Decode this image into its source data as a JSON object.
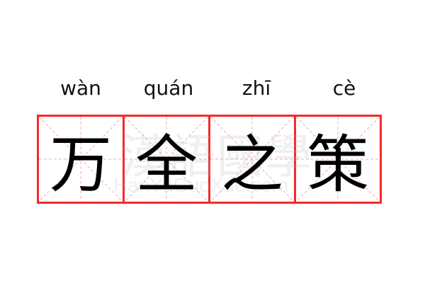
{
  "idiom": [
    {
      "char": "万",
      "pinyin": "wàn"
    },
    {
      "char": "全",
      "pinyin": "quán"
    },
    {
      "char": "之",
      "pinyin": "zhī"
    },
    {
      "char": "策",
      "pinyin": "cè"
    }
  ],
  "watermark": {
    "chinese": "漢語國學",
    "latin": "HanYuGuoXue.com"
  },
  "colors": {
    "grid_border": "#f42a2a",
    "grid_guides": "#f7a8a8",
    "text": "#000000"
  }
}
